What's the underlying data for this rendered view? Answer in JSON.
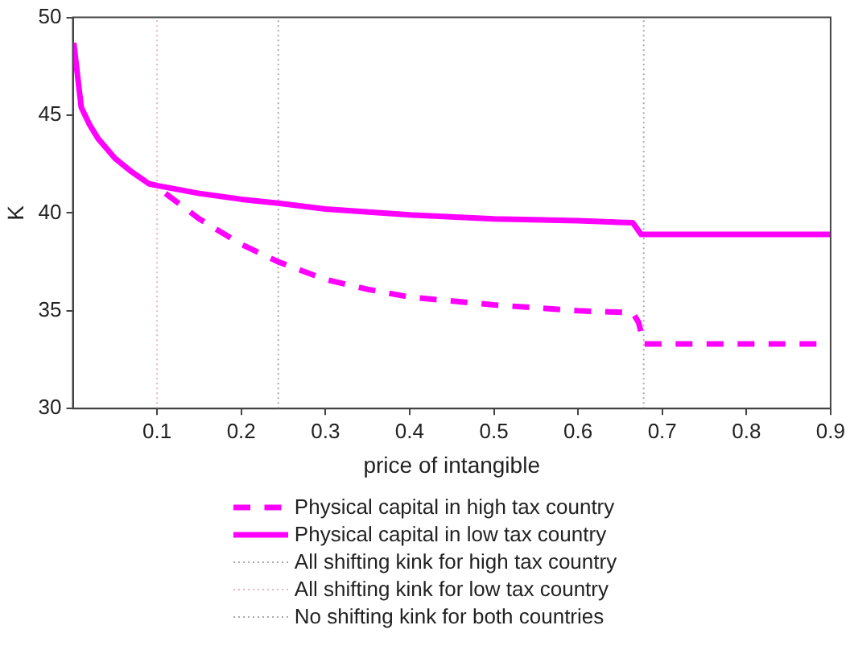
{
  "chart_data": {
    "type": "line",
    "xlabel": "price of intangible",
    "ylabel": "K",
    "xlim": [
      0,
      0.9
    ],
    "xticks": [
      0.1,
      0.2,
      0.3,
      0.4,
      0.5,
      0.6,
      0.7,
      0.8,
      0.9
    ],
    "ylim": [
      30,
      50
    ],
    "yticks": [
      30,
      35,
      40,
      45,
      50
    ],
    "grid": false,
    "legend": "bottom",
    "marker": "none",
    "series": [
      {
        "name": "Physical capital in high tax country",
        "color": "#ff00ff",
        "line_style": "dashed",
        "x": [
          0.11,
          0.15,
          0.2,
          0.244,
          0.3,
          0.35,
          0.4,
          0.5,
          0.6,
          0.665,
          0.672,
          0.678,
          0.9
        ],
        "values": [
          41.0,
          39.7,
          38.4,
          37.5,
          36.6,
          36.1,
          35.7,
          35.3,
          35.0,
          34.9,
          34.4,
          33.3,
          33.3
        ]
      },
      {
        "name": "Physical capital in low tax country",
        "color": "#ff00ff",
        "line_style": "solid",
        "x": [
          0.001,
          0.01,
          0.02,
          0.03,
          0.05,
          0.07,
          0.09,
          0.1,
          0.15,
          0.2,
          0.244,
          0.3,
          0.4,
          0.5,
          0.6,
          0.665,
          0.675,
          0.9
        ],
        "values": [
          48.7,
          45.4,
          44.5,
          43.8,
          42.8,
          42.1,
          41.5,
          41.4,
          41.0,
          40.7,
          40.5,
          40.2,
          39.9,
          39.7,
          39.6,
          39.5,
          38.9,
          38.9
        ]
      },
      {
        "name": "All shifting kink for high tax country",
        "color": "#aaaaaa",
        "line_style": "dotted",
        "x": [
          0.244,
          0.244
        ],
        "values": [
          30,
          50
        ]
      },
      {
        "name": "All shifting kink for low tax country",
        "color": "#f0b0c0",
        "line_style": "dotted",
        "x": [
          0.1,
          0.1
        ],
        "values": [
          30,
          50
        ]
      },
      {
        "name": "No shifting kink for both countries",
        "color": "#aaaaaa",
        "line_style": "dotted",
        "x": [
          0.678,
          0.678
        ],
        "values": [
          30,
          50
        ]
      }
    ]
  }
}
